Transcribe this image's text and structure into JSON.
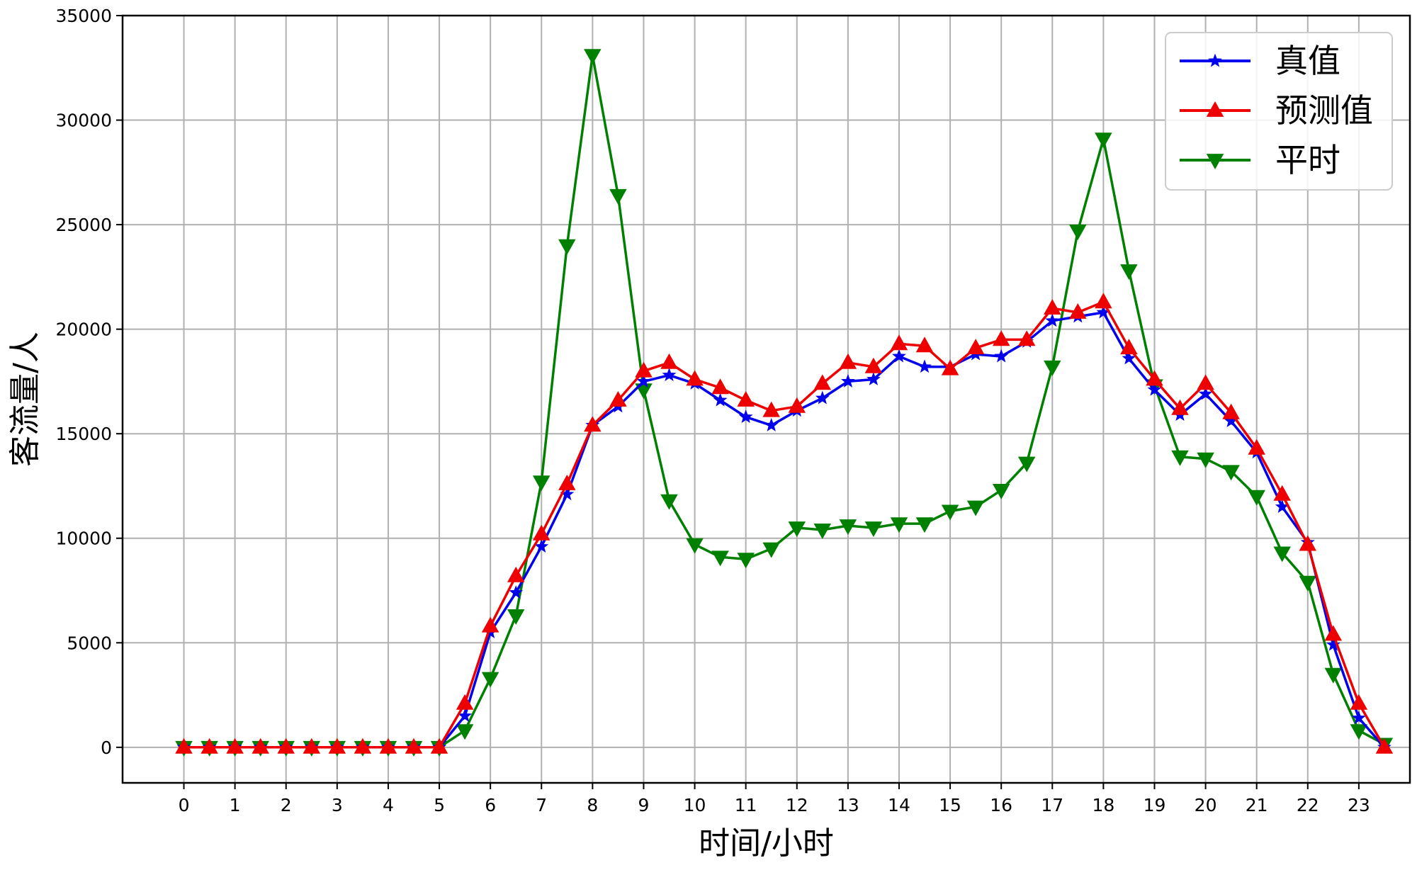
{
  "chart_data": {
    "type": "line",
    "title": "",
    "xlabel": "时间/小时",
    "ylabel": "客流量/人",
    "xlim": [
      -1.2,
      24.0
    ],
    "ylim": [
      -1700,
      35000
    ],
    "xticks": [
      0,
      1,
      2,
      3,
      4,
      5,
      6,
      7,
      8,
      9,
      10,
      11,
      12,
      13,
      14,
      15,
      16,
      17,
      18,
      19,
      20,
      21,
      22,
      23
    ],
    "yticks": [
      0,
      5000,
      10000,
      15000,
      20000,
      25000,
      30000,
      35000
    ],
    "grid": true,
    "legend_position": "upper-right",
    "x": [
      0,
      0.5,
      1,
      1.5,
      2,
      2.5,
      3,
      3.5,
      4,
      4.5,
      5,
      5.5,
      6,
      6.5,
      7,
      7.5,
      8,
      8.5,
      9,
      9.5,
      10,
      10.5,
      11,
      11.5,
      12,
      12.5,
      13,
      13.5,
      14,
      14.5,
      15,
      15.5,
      16,
      16.5,
      17,
      17.5,
      18,
      18.5,
      19,
      19.5,
      20,
      20.5,
      21,
      21.5,
      22,
      22.5,
      23,
      23.5
    ],
    "series": [
      {
        "name": "真值",
        "color": "#0000ee",
        "marker": "star",
        "values": [
          0,
          0,
          0,
          0,
          0,
          0,
          0,
          0,
          0,
          0,
          0,
          1500,
          5500,
          7400,
          9600,
          12100,
          15400,
          16300,
          17500,
          17800,
          17400,
          16600,
          15800,
          15400,
          16100,
          16700,
          17500,
          17600,
          18700,
          18200,
          18200,
          18800,
          18700,
          19400,
          20400,
          20600,
          20800,
          18600,
          17100,
          15900,
          16900,
          15600,
          14100,
          11500,
          9800,
          4900,
          1400,
          0
        ]
      },
      {
        "name": "预测值",
        "color": "#ee0000",
        "marker": "triangle-up",
        "values": [
          0,
          0,
          0,
          0,
          0,
          0,
          0,
          0,
          0,
          0,
          0,
          2100,
          5800,
          8200,
          10200,
          12600,
          15400,
          16600,
          18000,
          18400,
          17600,
          17200,
          16600,
          16100,
          16300,
          17400,
          18400,
          18200,
          19300,
          19200,
          18100,
          19100,
          19500,
          19500,
          21000,
          20800,
          21300,
          19100,
          17600,
          16200,
          17400,
          16000,
          14300,
          12100,
          9700,
          5400,
          2100,
          0
        ]
      },
      {
        "name": "平时",
        "color": "#008000",
        "marker": "triangle-down",
        "values": [
          0,
          0,
          0,
          0,
          0,
          0,
          0,
          0,
          0,
          0,
          0,
          800,
          3300,
          6300,
          12700,
          24000,
          33100,
          26400,
          17100,
          11800,
          9700,
          9100,
          9000,
          9500,
          10500,
          10400,
          10600,
          10500,
          10700,
          10700,
          11300,
          11500,
          12300,
          13600,
          18200,
          24700,
          29100,
          22800,
          17300,
          13900,
          13800,
          13200,
          12000,
          9300,
          7900,
          3500,
          800,
          150
        ]
      }
    ]
  }
}
